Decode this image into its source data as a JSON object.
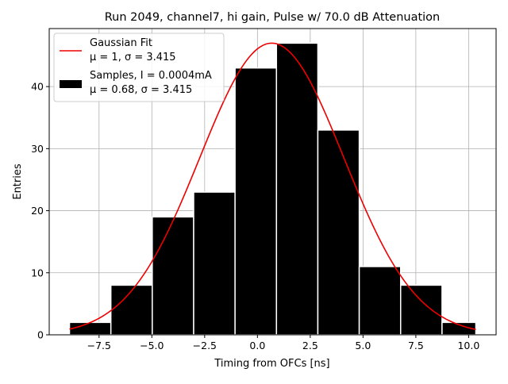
{
  "chart_data": {
    "type": "bar",
    "title": "Run 2049, channel7, hi gain, Pulse w/ 70.0 dB Attenuation",
    "xlabel": "Timing from OFCs [ns]",
    "ylabel": "Entries",
    "xlim": [
      -9.86,
      11.3
    ],
    "ylim": [
      0,
      49.35
    ],
    "xticks": [
      -7.5,
      -5.0,
      -2.5,
      0.0,
      2.5,
      5.0,
      7.5,
      10.0
    ],
    "xtick_labels": [
      "−7.5",
      "−5.0",
      "−2.5",
      "0.0",
      "2.5",
      "5.0",
      "7.5",
      "10.0"
    ],
    "yticks": [
      0,
      10,
      20,
      30,
      40
    ],
    "ytick_labels": [
      "0",
      "10",
      "20",
      "30",
      "40"
    ],
    "grid": true,
    "legend_position": "top-left",
    "histogram": {
      "name_line1": "Samples, I = 0.0004mA",
      "name_line2": "μ = 0.68, σ = 3.415",
      "bin_edges": [
        -8.9,
        -6.94,
        -4.98,
        -3.02,
        -1.06,
        0.9,
        2.86,
        4.82,
        6.78,
        8.74,
        10.34
      ],
      "counts": [
        2,
        8,
        19,
        23,
        43,
        47,
        33,
        11,
        8,
        2
      ],
      "color": "#000000",
      "edge_color": "#ffffff"
    },
    "fit": {
      "name_line1": "Gaussian Fit",
      "name_line2": "μ = 1, σ = 3.415",
      "amplitude": 47,
      "mean": 0.68,
      "sigma": 3.415,
      "x_range": [
        -8.9,
        10.34
      ],
      "color": "#ee0000"
    }
  }
}
